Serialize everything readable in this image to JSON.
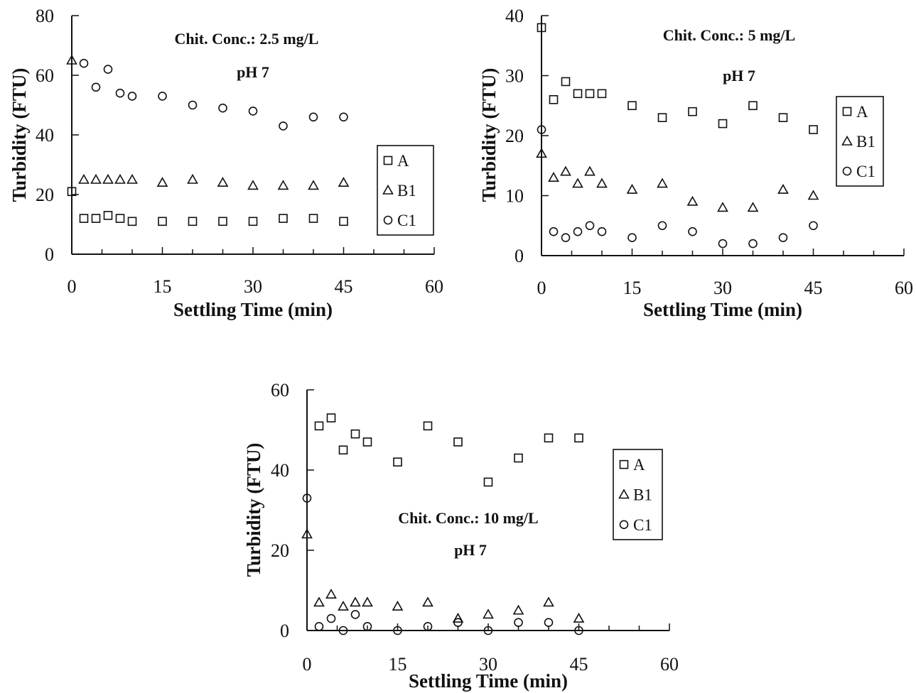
{
  "chart_data": [
    {
      "type": "scatter",
      "title": "",
      "annotations": [
        "Chit. Conc.: 2.5 mg/L",
        "pH 7"
      ],
      "xlabel": "Settling Time (min)",
      "ylabel": "Turbidity (FTU)",
      "xlim": [
        0,
        60
      ],
      "ylim": [
        0,
        80
      ],
      "xticks": [
        0,
        15,
        30,
        45,
        60
      ],
      "yticks": [
        0,
        20,
        40,
        60,
        80
      ],
      "grid": false,
      "legend_position": "right",
      "series": [
        {
          "name": "A",
          "marker": "square",
          "x": [
            0,
            2,
            4,
            6,
            8,
            10,
            15,
            20,
            25,
            30,
            35,
            40,
            45
          ],
          "y": [
            21,
            12,
            12,
            13,
            12,
            11,
            11,
            11,
            11,
            11,
            12,
            12,
            11
          ]
        },
        {
          "name": "B1",
          "marker": "triangle",
          "x": [
            0,
            2,
            4,
            6,
            8,
            10,
            15,
            20,
            25,
            30,
            35,
            40,
            45
          ],
          "y": [
            65,
            25,
            25,
            25,
            25,
            25,
            24,
            25,
            24,
            23,
            23,
            23,
            24
          ]
        },
        {
          "name": "C1",
          "marker": "circle",
          "x": [
            2,
            4,
            6,
            8,
            10,
            15,
            20,
            25,
            30,
            35,
            40,
            45
          ],
          "y": [
            64,
            56,
            62,
            54,
            53,
            53,
            50,
            49,
            48,
            43,
            46,
            46
          ]
        }
      ]
    },
    {
      "type": "scatter",
      "title": "",
      "annotations": [
        "Chit. Conc.: 5 mg/L",
        "pH 7"
      ],
      "xlabel": "Settling Time (min)",
      "ylabel": "Turbidity (FTU)",
      "xlim": [
        0,
        60
      ],
      "ylim": [
        0,
        40
      ],
      "xticks": [
        0,
        15,
        30,
        45,
        60
      ],
      "yticks": [
        0,
        10,
        20,
        30,
        40
      ],
      "grid": false,
      "legend_position": "right",
      "series": [
        {
          "name": "A",
          "marker": "square",
          "x": [
            0,
            2,
            4,
            6,
            8,
            10,
            15,
            20,
            25,
            30,
            35,
            40,
            45
          ],
          "y": [
            38,
            26,
            29,
            27,
            27,
            27,
            25,
            23,
            24,
            22,
            25,
            23,
            21
          ]
        },
        {
          "name": "B1",
          "marker": "triangle",
          "x": [
            0,
            2,
            4,
            6,
            8,
            10,
            15,
            20,
            25,
            30,
            35,
            40,
            45
          ],
          "y": [
            17,
            13,
            14,
            12,
            14,
            12,
            11,
            12,
            9,
            8,
            8,
            11,
            10
          ]
        },
        {
          "name": "C1",
          "marker": "circle",
          "x": [
            0,
            2,
            4,
            6,
            8,
            10,
            15,
            20,
            25,
            30,
            35,
            40,
            45
          ],
          "y": [
            21,
            4,
            3,
            4,
            5,
            4,
            3,
            5,
            4,
            2,
            2,
            3,
            5
          ]
        }
      ]
    },
    {
      "type": "scatter",
      "title": "",
      "annotations": [
        "Chit. Conc.: 10 mg/L",
        "pH 7"
      ],
      "xlabel": "Settling Time (min)",
      "ylabel": "Turbidity (FTU)",
      "xlim": [
        0,
        60
      ],
      "ylim": [
        0,
        60
      ],
      "xticks": [
        0,
        15,
        30,
        45,
        60
      ],
      "yticks": [
        0,
        20,
        40,
        60
      ],
      "grid": false,
      "legend_position": "right",
      "series": [
        {
          "name": "A",
          "marker": "square",
          "x": [
            2,
            4,
            6,
            8,
            10,
            15,
            20,
            25,
            30,
            35,
            40,
            45
          ],
          "y": [
            51,
            53,
            45,
            49,
            47,
            42,
            51,
            47,
            37,
            43,
            48,
            48
          ]
        },
        {
          "name": "B1",
          "marker": "triangle",
          "x": [
            0,
            2,
            4,
            6,
            8,
            10,
            15,
            20,
            25,
            30,
            35,
            40,
            45
          ],
          "y": [
            24,
            7,
            9,
            6,
            7,
            7,
            6,
            7,
            3,
            4,
            5,
            7,
            3
          ]
        },
        {
          "name": "C1",
          "marker": "circle",
          "x": [
            0,
            2,
            4,
            6,
            8,
            10,
            15,
            20,
            25,
            30,
            35,
            40,
            45
          ],
          "y": [
            33,
            1,
            3,
            0,
            4,
            1,
            0,
            1,
            2,
            0,
            2,
            2,
            0
          ]
        }
      ]
    }
  ]
}
